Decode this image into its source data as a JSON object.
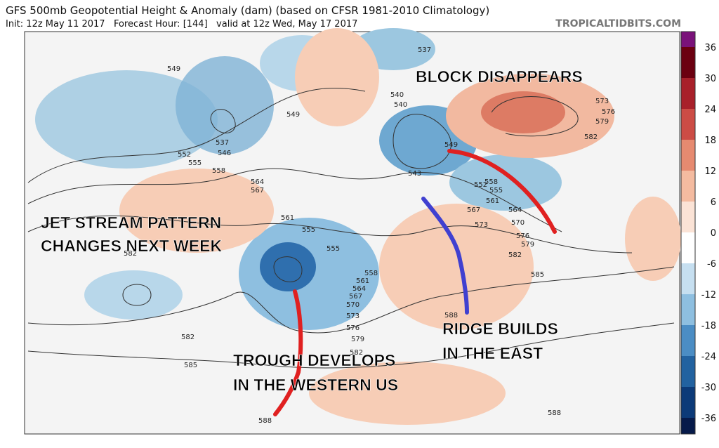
{
  "header": {
    "title": "GFS 500mb Geopotential Height & Anomaly (dam) (based on CFSR 1981-2010 Climatology)",
    "subtitle": "Init: 12z May 11 2017   Forecast Hour: [144]   valid at 12z Wed, May 17 2017",
    "site": "TROPICALTIDBITS.COM"
  },
  "annotations": {
    "jet_stream": [
      "JET STREAM PATTERN",
      "CHANGES NEXT WEEK"
    ],
    "block": [
      "BLOCK DISAPPEARS"
    ],
    "ridge": [
      "RIDGE BUILDS",
      "IN THE EAST"
    ],
    "trough": [
      "TROUGH DEVELOPS",
      "IN THE WESTERN US"
    ]
  },
  "contour_labels": [
    "549",
    "537",
    "546",
    "552",
    "555",
    "558",
    "564",
    "567",
    "561",
    "555",
    "582",
    "582",
    "585",
    "537",
    "540",
    "540",
    "549",
    "543",
    "549",
    "552",
    "555",
    "558",
    "561",
    "564",
    "567",
    "570",
    "573",
    "576",
    "579",
    "582",
    "585",
    "573",
    "576",
    "579",
    "582",
    "555",
    "558",
    "561",
    "564",
    "567",
    "570",
    "573",
    "576",
    "579",
    "582",
    "588",
    "588",
    "588"
  ],
  "colorbar": {
    "ticks": [
      36,
      30,
      24,
      18,
      12,
      6,
      0,
      -6,
      -12,
      -18,
      -24,
      -30,
      -36
    ]
  }
}
